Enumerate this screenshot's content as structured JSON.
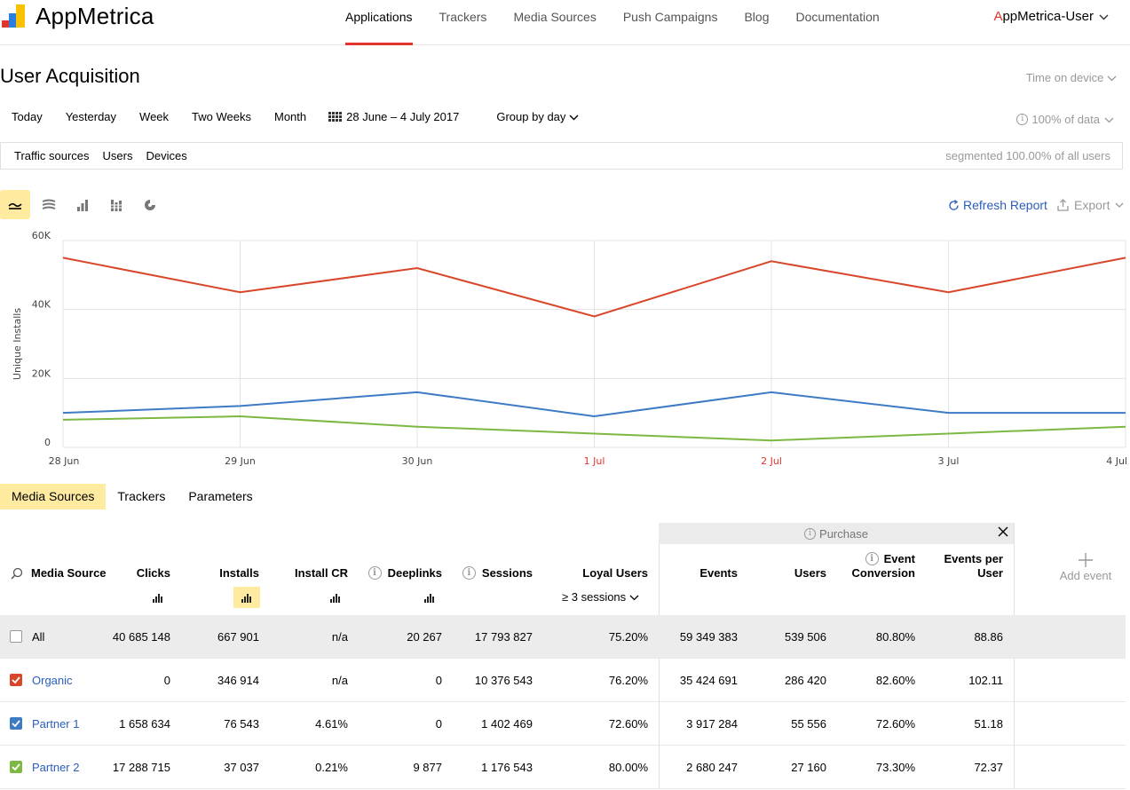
{
  "app": {
    "logo_text": "AppMetrica",
    "user_first": "A",
    "user_rest": "ppMetrica-User"
  },
  "nav": [
    "Applications",
    "Trackers",
    "Media Sources",
    "Push Campaigns",
    "Blog",
    "Documentation"
  ],
  "page": {
    "title": "User Acquisition",
    "time_device": "Time on device"
  },
  "periods": [
    "Today",
    "Yesterday",
    "Week",
    "Two Weeks",
    "Month"
  ],
  "date_range": "28 June – 4 July 2017",
  "group_by": "Group by day",
  "data_pct": "100% of data",
  "segments": {
    "tabs": [
      "Traffic sources",
      "Users",
      "Devices"
    ],
    "summary": "segmented 100.00% of all users"
  },
  "chart_tools": {
    "refresh": "Refresh Report",
    "export": "Export",
    "icons": [
      "line-chart-icon",
      "stacked-area-icon",
      "bar-chart-icon",
      "stacked-bar-icon",
      "pie-chart-icon"
    ]
  },
  "chart_data": {
    "type": "line",
    "ylabel": "Unique Installs",
    "ylim": [
      0,
      60000
    ],
    "yticks": [
      "0",
      "20K",
      "40K",
      "60K"
    ],
    "yticks_values": [
      0,
      20000,
      40000,
      60000
    ],
    "x": [
      "28 Jun",
      "29 Jun",
      "30 Jun",
      "1 Jul",
      "2 Jul",
      "3 Jul",
      "4 Jul"
    ],
    "weekend_labels": [
      "1 Jul",
      "2 Jul"
    ],
    "series": [
      {
        "color": "#d9472b",
        "values": [
          55000,
          45000,
          52000,
          38000,
          54000,
          45000,
          55000
        ]
      },
      {
        "color": "#3e7bc4",
        "values": [
          10000,
          12000,
          16000,
          9000,
          16000,
          10000,
          10000
        ]
      },
      {
        "color": "#7db843",
        "values": [
          8000,
          9000,
          6000,
          4000,
          2000,
          4000,
          6000
        ]
      }
    ],
    "grid": true
  },
  "dim_tabs": [
    "Media Sources",
    "Trackers",
    "Parameters"
  ],
  "table": {
    "purchase_label": "Purchase",
    "add_event": "Add event",
    "sessions_select": "≥ 3 sessions",
    "headers": {
      "media_source": "Media Source",
      "clicks": "Clicks",
      "installs": "Installs",
      "install_cr": "Install CR",
      "deeplinks": "Deeplinks",
      "sessions": "Sessions",
      "loyal_users": "Loyal Users",
      "events": "Events",
      "users": "Users",
      "event_conv_1": "Event",
      "event_conv_2": "Conversion",
      "epu_1": "Events per",
      "epu_2": "User"
    },
    "rows": [
      {
        "name": "All",
        "checked": false,
        "color": "",
        "clicks": "40 685 148",
        "installs": "667 901",
        "install_cr": "n/a",
        "deeplinks": "20 267",
        "sessions": "17 793 827",
        "loyal": "75.20%",
        "events": "59 349 383",
        "users": "539 506",
        "conv": "80.80%",
        "epu": "88.86"
      },
      {
        "name": "Organic",
        "checked": true,
        "color": "#d9472b",
        "clicks": "0",
        "installs": "346 914",
        "install_cr": "n/a",
        "deeplinks": "0",
        "sessions": "10 376 543",
        "loyal": "76.20%",
        "events": "35 424 691",
        "users": "286 420",
        "conv": "82.60%",
        "epu": "102.11"
      },
      {
        "name": "Partner 1",
        "checked": true,
        "color": "#3e7bc4",
        "clicks": "1 658 634",
        "installs": "76 543",
        "install_cr": "4.61%",
        "deeplinks": "0",
        "sessions": "1 402 469",
        "loyal": "72.60%",
        "events": "3 917 284",
        "users": "55 556",
        "conv": "72.60%",
        "epu": "51.18"
      },
      {
        "name": "Partner 2",
        "checked": true,
        "color": "#7db843",
        "clicks": "17 288 715",
        "installs": "37 037",
        "install_cr": "0.21%",
        "deeplinks": "9 877",
        "sessions": "1 176 543",
        "loyal": "80.00%",
        "events": "2 680 247",
        "users": "27 160",
        "conv": "73.30%",
        "epu": "72.37"
      }
    ]
  }
}
